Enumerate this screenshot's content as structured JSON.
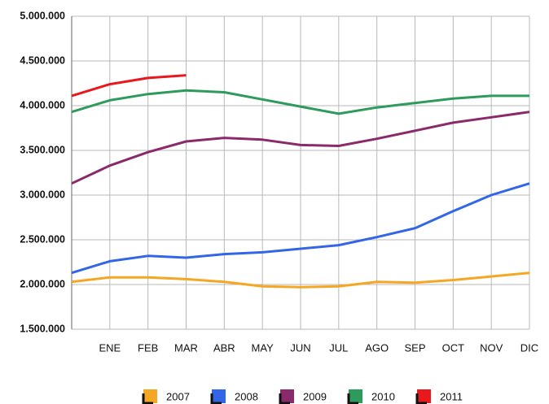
{
  "chart_data": {
    "type": "line",
    "categories": [
      null,
      "ENE",
      "FEB",
      "MAR",
      "ABR",
      "MAY",
      "JUN",
      "JUL",
      "AGO",
      "SEP",
      "OCT",
      "NOV",
      "DIC"
    ],
    "series": [
      {
        "name": "2007",
        "color": "#f5a623",
        "values": [
          2030000,
          2080000,
          2080000,
          2060000,
          2030000,
          1980000,
          1970000,
          1980000,
          2030000,
          2020000,
          2050000,
          2090000,
          2130000
        ]
      },
      {
        "name": "2008",
        "color": "#3366e6",
        "values": [
          2130000,
          2260000,
          2320000,
          2300000,
          2340000,
          2360000,
          2400000,
          2440000,
          2530000,
          2630000,
          2820000,
          3000000,
          3130000
        ]
      },
      {
        "name": "2009",
        "color": "#8b2a6b",
        "values": [
          3130000,
          3330000,
          3480000,
          3600000,
          3640000,
          3620000,
          3560000,
          3550000,
          3630000,
          3720000,
          3810000,
          3870000,
          3930000
        ]
      },
      {
        "name": "2010",
        "color": "#2e9a5c",
        "values": [
          3930000,
          4060000,
          4130000,
          4170000,
          4150000,
          4070000,
          3990000,
          3910000,
          3980000,
          4030000,
          4080000,
          4110000,
          4110000
        ]
      },
      {
        "name": "2011",
        "color": "#e8191c",
        "values": [
          4110000,
          4240000,
          4310000,
          4340000,
          null,
          null,
          null,
          null,
          null,
          null,
          null,
          null,
          null
        ]
      }
    ],
    "ylim": [
      1500000,
      5000000
    ],
    "yticks": [
      {
        "value": 1500000,
        "label": "1.500.000"
      },
      {
        "value": 2000000,
        "label": "2.000.000"
      },
      {
        "value": 2500000,
        "label": "2.500.000"
      },
      {
        "value": 3000000,
        "label": "3.000.000"
      },
      {
        "value": 3500000,
        "label": "3.500.000"
      },
      {
        "value": 4000000,
        "label": "4.000.000"
      },
      {
        "value": 4500000,
        "label": "4.500.000"
      },
      {
        "value": 5000000,
        "label": "5.000.000"
      }
    ],
    "grid": true,
    "legend": "bottom"
  }
}
